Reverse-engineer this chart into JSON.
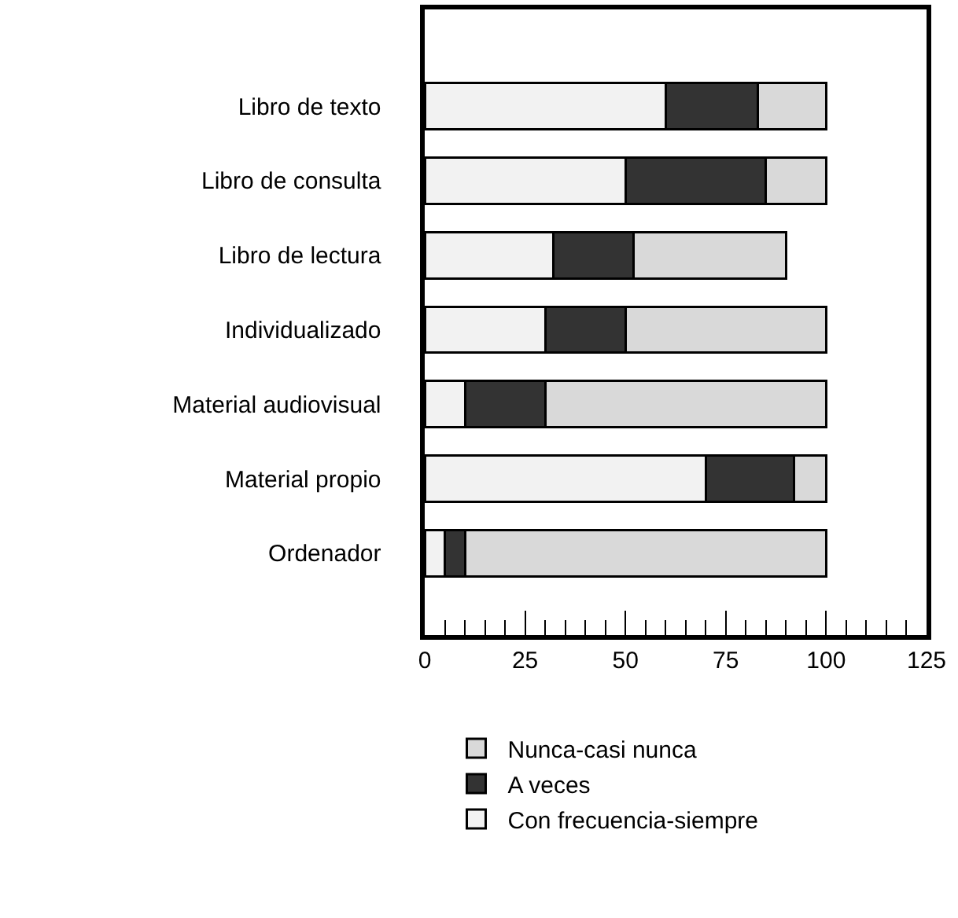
{
  "chart_data": {
    "type": "bar",
    "orientation": "horizontal",
    "stacked": true,
    "categories": [
      "Libro de texto",
      "Libro de consulta",
      "Libro de lectura",
      "Individualizado",
      "Material audiovisual",
      "Material propio",
      "Ordenador"
    ],
    "series": [
      {
        "name": "Con frecuencia-siempre",
        "color": "#f2f2f2",
        "values": [
          60,
          50,
          32,
          30,
          10,
          70,
          5
        ]
      },
      {
        "name": "A veces",
        "color": "#333333",
        "values": [
          23,
          35,
          20,
          20,
          20,
          22,
          5
        ]
      },
      {
        "name": "Nunca-casi nunca",
        "color": "#d9d9d9",
        "values": [
          17,
          15,
          38,
          50,
          70,
          8,
          90
        ]
      }
    ],
    "xlim": [
      0,
      125
    ],
    "xticks": [
      0,
      25,
      50,
      75,
      100,
      125
    ],
    "grid": false,
    "legend": "bottom"
  }
}
